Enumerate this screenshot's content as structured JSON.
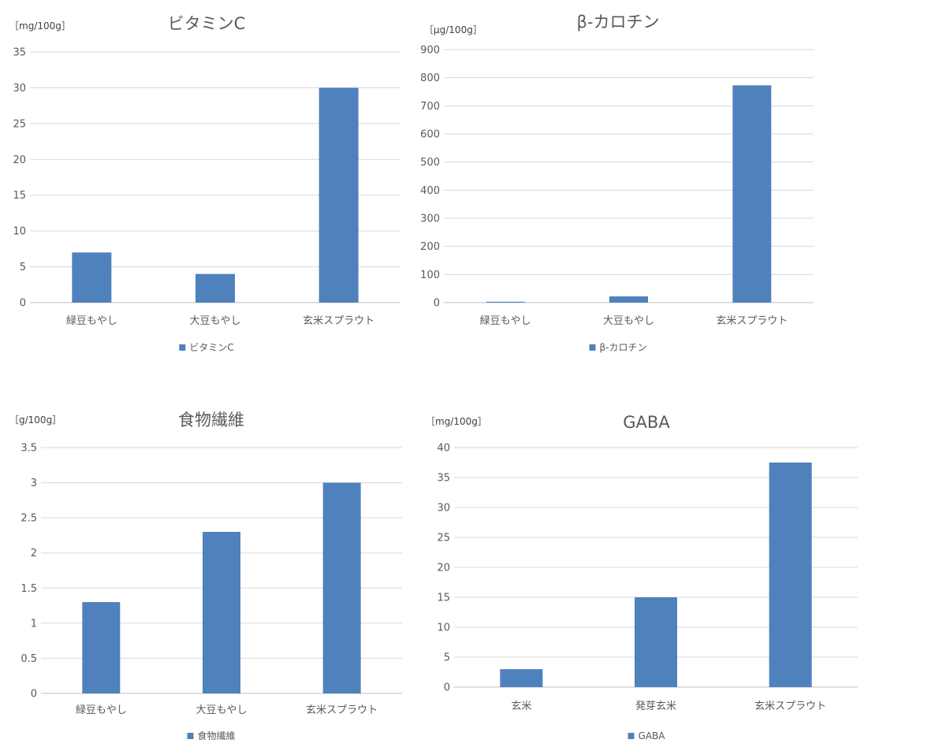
{
  "chart_data": [
    {
      "type": "bar",
      "title": "ビタミンC",
      "unit_label": "［mg/100g］",
      "categories": [
        "緑豆もやし",
        "大豆もやし",
        "玄米スプラウト"
      ],
      "series": [
        {
          "name": "ビタミンC",
          "values": [
            7,
            4,
            30
          ],
          "color": "#4f81bd"
        }
      ],
      "ylim": [
        0,
        35
      ],
      "yticks": [
        0,
        5,
        10,
        15,
        20,
        25,
        30,
        35
      ],
      "grid": true,
      "legend": "bottom"
    },
    {
      "type": "bar",
      "title": "β-カロチン",
      "unit_label": "［μg/100g］",
      "categories": [
        "緑豆もやし",
        "大豆もやし",
        "玄米スプラウト"
      ],
      "series": [
        {
          "name": "β-カロチン",
          "values": [
            3,
            22,
            773
          ],
          "color": "#4f81bd"
        }
      ],
      "ylim": [
        0,
        900
      ],
      "yticks": [
        0,
        100,
        200,
        300,
        400,
        500,
        600,
        700,
        800,
        900
      ],
      "grid": true,
      "legend": "bottom"
    },
    {
      "type": "bar",
      "title": "食物繊維",
      "unit_label": "［g/100g］",
      "categories": [
        "緑豆もやし",
        "大豆もやし",
        "玄米スプラウト"
      ],
      "series": [
        {
          "name": "食物繊維",
          "values": [
            1.3,
            2.3,
            3.0
          ],
          "color": "#4f81bd"
        }
      ],
      "ylim": [
        0,
        3.5
      ],
      "yticks": [
        0,
        0.5,
        1,
        1.5,
        2,
        2.5,
        3,
        3.5
      ],
      "grid": true,
      "legend": "bottom"
    },
    {
      "type": "bar",
      "title": "GABA",
      "unit_label": "［mg/100g］",
      "categories": [
        "玄米",
        "発芽玄米",
        "玄米スプラウト"
      ],
      "series": [
        {
          "name": "GABA",
          "values": [
            3,
            15,
            37.5
          ],
          "color": "#4f81bd"
        }
      ],
      "ylim": [
        0,
        40
      ],
      "yticks": [
        0,
        5,
        10,
        15,
        20,
        25,
        30,
        35,
        40
      ],
      "grid": true,
      "legend": "bottom"
    }
  ]
}
